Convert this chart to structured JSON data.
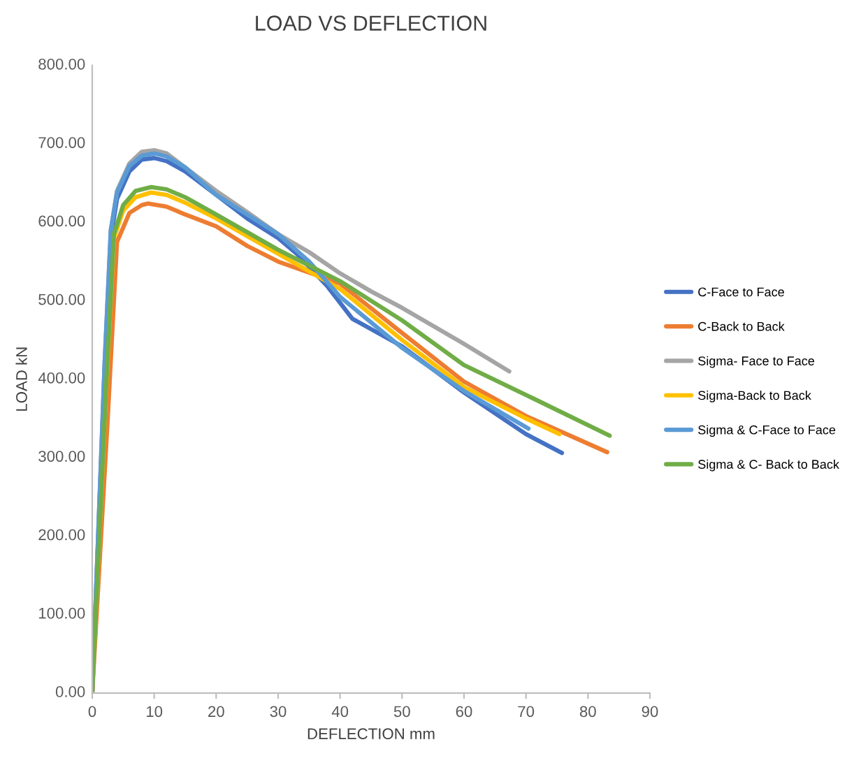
{
  "chart_data": {
    "type": "line",
    "title": "LOAD VS DEFLECTION",
    "xlabel": "DEFLECTION mm",
    "ylabel": "LOAD kN",
    "xlim": [
      0,
      90
    ],
    "xticks": [
      0,
      10,
      20,
      30,
      40,
      50,
      60,
      70,
      80,
      90
    ],
    "ylim": [
      0,
      800
    ],
    "yticks": [
      {
        "value": 0,
        "label": "0.00"
      },
      {
        "value": 100,
        "label": "100.00"
      },
      {
        "value": 200,
        "label": "200.00"
      },
      {
        "value": 300,
        "label": "300.00"
      },
      {
        "value": 400,
        "label": "400.00"
      },
      {
        "value": 500,
        "label": "500.00"
      },
      {
        "value": 600,
        "label": "600.00"
      },
      {
        "value": 700,
        "label": "700.00"
      },
      {
        "value": 800,
        "label": "800.00"
      }
    ],
    "grid": false,
    "legend": "right",
    "marker": "none",
    "line_style": "solid",
    "series": [
      {
        "name": "C-Face to Face",
        "color": "#4472c4",
        "x": [
          0,
          2,
          3,
          4,
          6,
          8,
          10,
          12,
          15,
          20,
          25,
          30,
          33,
          38,
          42,
          50,
          60,
          70,
          75.8
        ],
        "values": [
          0,
          410,
          580,
          630,
          665,
          680,
          682,
          678,
          665,
          635,
          605,
          580,
          560,
          518,
          477,
          442,
          383,
          330,
          306
        ]
      },
      {
        "name": "C-Back to Back",
        "color": "#ed7d31",
        "x": [
          0,
          2.5,
          4,
          6,
          8,
          9,
          12,
          15,
          20,
          25,
          30,
          40,
          50,
          60,
          70,
          83.1
        ],
        "values": [
          0,
          350,
          575,
          612,
          622,
          624,
          620,
          610,
          595,
          570,
          550,
          522,
          459,
          397,
          353,
          307
        ]
      },
      {
        "name": "Sigma- Face to Face",
        "color": "#a5a5a5",
        "x": [
          0,
          2,
          3,
          4,
          6,
          8,
          10,
          12,
          15,
          20,
          25,
          30,
          35,
          40,
          45,
          50,
          55,
          60,
          67.3
        ],
        "values": [
          0,
          420,
          590,
          640,
          675,
          690,
          692,
          688,
          670,
          640,
          613,
          585,
          562,
          535,
          512,
          491,
          468,
          445,
          410
        ]
      },
      {
        "name": "Sigma-Back to Back",
        "color": "#ffc000",
        "x": [
          0,
          2.2,
          3.5,
          5,
          7,
          9.5,
          12,
          15,
          20,
          30,
          40,
          50,
          60,
          70,
          75.4
        ],
        "values": [
          0,
          380,
          580,
          615,
          632,
          638,
          635,
          625,
          605,
          560,
          515,
          450,
          390,
          350,
          330
        ]
      },
      {
        "name": "Sigma & C-Face to Face",
        "color": "#5b9bd5",
        "x": [
          0,
          2,
          3,
          4,
          6,
          8,
          10,
          12,
          15,
          20,
          30,
          35,
          40,
          50,
          60,
          70.4
        ],
        "values": [
          0,
          420,
          590,
          638,
          672,
          685,
          688,
          684,
          670,
          635,
          585,
          550,
          505,
          440,
          385,
          337
        ]
      },
      {
        "name": "Sigma & C- Back to Back",
        "color": "#70ad47",
        "x": [
          0,
          2.2,
          3.5,
          5,
          7,
          9.5,
          12,
          15,
          20,
          30,
          40,
          50,
          60,
          70,
          83.5
        ],
        "values": [
          0,
          385,
          585,
          622,
          640,
          645,
          642,
          632,
          610,
          565,
          525,
          475,
          418,
          380,
          328
        ]
      }
    ]
  }
}
